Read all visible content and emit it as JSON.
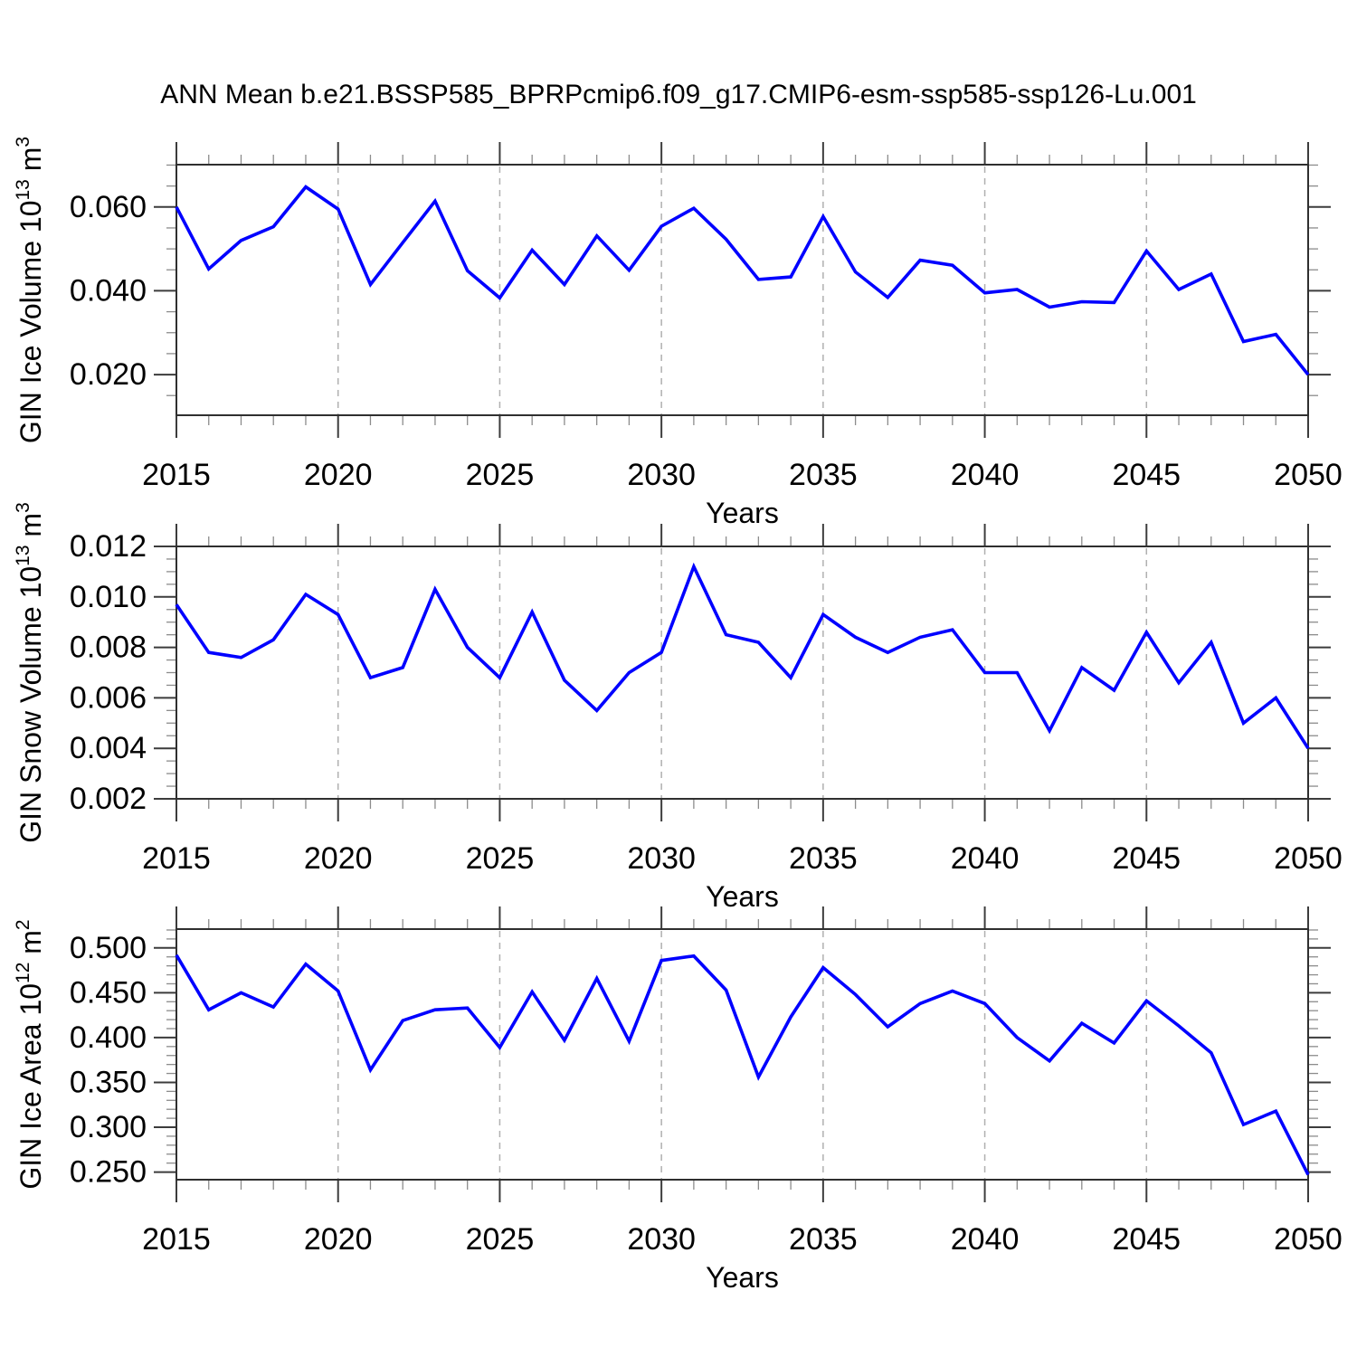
{
  "title": "ANN Mean b.e21.BSSP585_BPRPcmip6.f09_g17.CMIP6-esm-ssp585-ssp126-Lu.001",
  "colors": {
    "line": "#0000ff",
    "border": "#2f2f2f",
    "major_tick": "#3c3c3c",
    "minor_tick": "#8c8c8c",
    "grid": "#b0b0b0",
    "text": "#000000"
  },
  "chart_data": [
    {
      "type": "line",
      "title": "",
      "xlabel": "Years",
      "ylabel_text": "GIN Ice Volume 10^13 m^3",
      "ylabel_parts": [
        {
          "t": "GIN Ice Volume 10",
          "sup": false
        },
        {
          "t": "13",
          "sup": true
        },
        {
          "t": " m",
          "sup": false
        },
        {
          "t": "3",
          "sup": true
        }
      ],
      "x": [
        2015,
        2016,
        2017,
        2018,
        2019,
        2020,
        2021,
        2022,
        2023,
        2024,
        2025,
        2026,
        2027,
        2028,
        2029,
        2030,
        2031,
        2032,
        2033,
        2034,
        2035,
        2036,
        2037,
        2038,
        2039,
        2040,
        2041,
        2042,
        2043,
        2044,
        2045,
        2046,
        2047,
        2048,
        2049,
        2050
      ],
      "values": [
        0.06,
        0.0452,
        0.052,
        0.0553,
        0.0648,
        0.0595,
        0.0415,
        0.0515,
        0.0614,
        0.0448,
        0.0383,
        0.0497,
        0.0415,
        0.0531,
        0.0449,
        0.0554,
        0.0597,
        0.0523,
        0.0427,
        0.0433,
        0.0577,
        0.0445,
        0.0384,
        0.0473,
        0.0461,
        0.0395,
        0.0403,
        0.0361,
        0.0374,
        0.0372,
        0.0495,
        0.0403,
        0.044,
        0.0279,
        0.0296,
        0.02
      ],
      "xlim": [
        2015,
        2050
      ],
      "ylim": [
        0.0103,
        0.0701
      ],
      "x_major_ticks": [
        2015,
        2020,
        2025,
        2030,
        2035,
        2040,
        2045,
        2050
      ],
      "x_minor_step": 1,
      "x_grid": [
        2020,
        2025,
        2030,
        2035,
        2040,
        2045
      ],
      "y_major_ticks": [
        0.02,
        0.04,
        0.06
      ],
      "y_tick_labels": [
        "0.020",
        "0.040",
        "0.060"
      ],
      "y_minor_step": 0.005,
      "grid": "vertical-dashed",
      "legend": "none"
    },
    {
      "type": "line",
      "title": "",
      "xlabel": "Years",
      "ylabel_text": "GIN Snow Volume 10^13 m^3",
      "ylabel_parts": [
        {
          "t": "GIN Snow Volume 10",
          "sup": false
        },
        {
          "t": "13",
          "sup": true
        },
        {
          "t": " m",
          "sup": false
        },
        {
          "t": "3",
          "sup": true
        }
      ],
      "x": [
        2015,
        2016,
        2017,
        2018,
        2019,
        2020,
        2021,
        2022,
        2023,
        2024,
        2025,
        2026,
        2027,
        2028,
        2029,
        2030,
        2031,
        2032,
        2033,
        2034,
        2035,
        2036,
        2037,
        2038,
        2039,
        2040,
        2041,
        2042,
        2043,
        2044,
        2045,
        2046,
        2047,
        2048,
        2049,
        2050
      ],
      "values": [
        0.0097,
        0.0078,
        0.0076,
        0.0083,
        0.0101,
        0.0093,
        0.0068,
        0.0072,
        0.0103,
        0.008,
        0.0068,
        0.0094,
        0.0067,
        0.0055,
        0.007,
        0.0078,
        0.0112,
        0.0085,
        0.0082,
        0.0068,
        0.0093,
        0.0084,
        0.0078,
        0.0084,
        0.0087,
        0.007,
        0.007,
        0.0047,
        0.0072,
        0.0063,
        0.0086,
        0.0066,
        0.0082,
        0.005,
        0.006,
        0.004
      ],
      "xlim": [
        2015,
        2050
      ],
      "ylim": [
        0.002,
        0.012
      ],
      "x_major_ticks": [
        2015,
        2020,
        2025,
        2030,
        2035,
        2040,
        2045,
        2050
      ],
      "x_minor_step": 1,
      "x_grid": [
        2020,
        2025,
        2030,
        2035,
        2040,
        2045
      ],
      "y_major_ticks": [
        0.002,
        0.004,
        0.006,
        0.008,
        0.01,
        0.012
      ],
      "y_tick_labels": [
        "0.002",
        "0.004",
        "0.006",
        "0.008",
        "0.010",
        "0.012"
      ],
      "y_minor_step": 0.0005,
      "grid": "vertical-dashed",
      "legend": "none"
    },
    {
      "type": "line",
      "title": "",
      "xlabel": "Years",
      "ylabel_text": "GIN Ice Area 10^12 m^2",
      "ylabel_parts": [
        {
          "t": "GIN Ice Area 10",
          "sup": false
        },
        {
          "t": "12",
          "sup": true
        },
        {
          "t": " m",
          "sup": false
        },
        {
          "t": "2",
          "sup": true
        }
      ],
      "x": [
        2015,
        2016,
        2017,
        2018,
        2019,
        2020,
        2021,
        2022,
        2023,
        2024,
        2025,
        2026,
        2027,
        2028,
        2029,
        2030,
        2031,
        2032,
        2033,
        2034,
        2035,
        2036,
        2037,
        2038,
        2039,
        2040,
        2041,
        2042,
        2043,
        2044,
        2045,
        2046,
        2047,
        2048,
        2049,
        2050
      ],
      "values": [
        0.492,
        0.431,
        0.45,
        0.434,
        0.482,
        0.452,
        0.364,
        0.419,
        0.431,
        0.433,
        0.389,
        0.451,
        0.397,
        0.466,
        0.396,
        0.486,
        0.491,
        0.453,
        0.356,
        0.423,
        0.478,
        0.448,
        0.412,
        0.438,
        0.452,
        0.438,
        0.4,
        0.374,
        0.416,
        0.394,
        0.441,
        0.413,
        0.383,
        0.303,
        0.318,
        0.247
      ],
      "xlim": [
        2015,
        2050
      ],
      "ylim": [
        0.2415,
        0.521
      ],
      "x_major_ticks": [
        2015,
        2020,
        2025,
        2030,
        2035,
        2040,
        2045,
        2050
      ],
      "x_minor_step": 1,
      "x_grid": [
        2020,
        2025,
        2030,
        2035,
        2040,
        2045
      ],
      "y_major_ticks": [
        0.25,
        0.3,
        0.35,
        0.4,
        0.45,
        0.5
      ],
      "y_tick_labels": [
        "0.250",
        "0.300",
        "0.350",
        "0.400",
        "0.450",
        "0.500"
      ],
      "y_minor_step": 0.01,
      "grid": "vertical-dashed",
      "legend": "none"
    }
  ]
}
